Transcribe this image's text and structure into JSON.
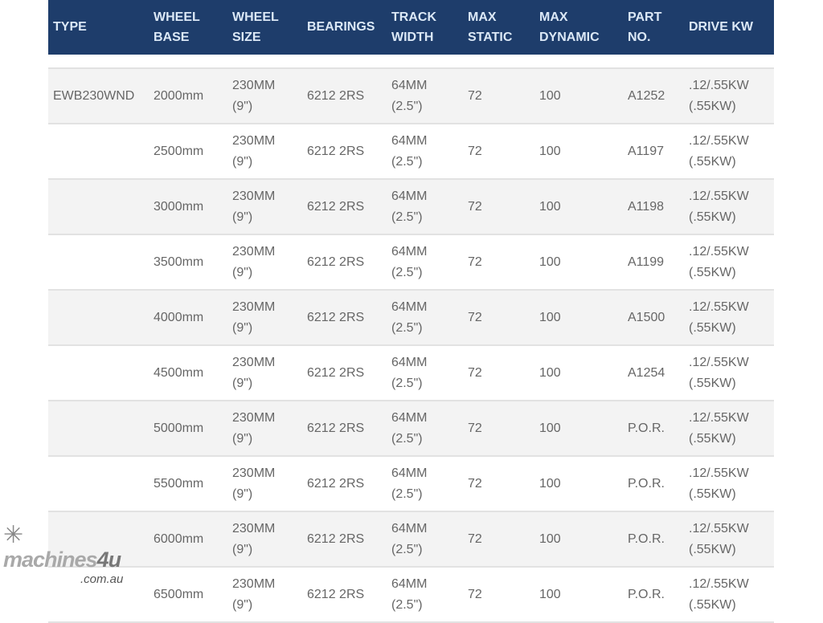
{
  "headers": [
    [
      "TYPE"
    ],
    [
      "WHEEL",
      "BASE"
    ],
    [
      "WHEEL",
      "SIZE"
    ],
    [
      "BEARINGS"
    ],
    [
      "TRACK",
      "WIDTH"
    ],
    [
      "MAX",
      "STATIC"
    ],
    [
      "MAX",
      "DYNAMIC"
    ],
    [
      "PART",
      "NO."
    ],
    [
      "DRIVE  KW"
    ]
  ],
  "rows": [
    {
      "type": "EWB230WND",
      "base": "2000mm",
      "size": [
        "230MM",
        "(9\")"
      ],
      "bearings": "6212 2RS",
      "track": [
        "64MM",
        "(2.5\")"
      ],
      "static": "72",
      "dynamic": "100",
      "part": "A1252",
      "drive": [
        ".12/.55KW",
        "(.55KW)"
      ]
    },
    {
      "type": "",
      "base": "2500mm",
      "size": [
        "230MM",
        "(9\")"
      ],
      "bearings": "6212 2RS",
      "track": [
        "64MM",
        "(2.5\")"
      ],
      "static": "72",
      "dynamic": "100",
      "part": "A1197",
      "drive": [
        ".12/.55KW",
        "(.55KW)"
      ]
    },
    {
      "type": "",
      "base": "3000mm",
      "size": [
        "230MM",
        "(9\")"
      ],
      "bearings": "6212 2RS",
      "track": [
        "64MM",
        "(2.5\")"
      ],
      "static": "72",
      "dynamic": "100",
      "part": "A1198",
      "drive": [
        ".12/.55KW",
        "(.55KW)"
      ]
    },
    {
      "type": "",
      "base": "3500mm",
      "size": [
        "230MM",
        "(9\")"
      ],
      "bearings": "6212 2RS",
      "track": [
        "64MM",
        "(2.5\")"
      ],
      "static": "72",
      "dynamic": "100",
      "part": "A1199",
      "drive": [
        ".12/.55KW",
        "(.55KW)"
      ]
    },
    {
      "type": "",
      "base": "4000mm",
      "size": [
        "230MM",
        "(9\")"
      ],
      "bearings": "6212 2RS",
      "track": [
        "64MM",
        "(2.5\")"
      ],
      "static": "72",
      "dynamic": "100",
      "part": "A1500",
      "drive": [
        ".12/.55KW",
        "(.55KW)"
      ]
    },
    {
      "type": "",
      "base": "4500mm",
      "size": [
        "230MM",
        "(9\")"
      ],
      "bearings": "6212 2RS",
      "track": [
        "64MM",
        "(2.5\")"
      ],
      "static": "72",
      "dynamic": "100",
      "part": "A1254",
      "drive": [
        ".12/.55KW",
        "(.55KW)"
      ]
    },
    {
      "type": "",
      "base": "5000mm",
      "size": [
        "230MM",
        "(9\")"
      ],
      "bearings": "6212 2RS",
      "track": [
        "64MM",
        "(2.5\")"
      ],
      "static": "72",
      "dynamic": "100",
      "part": "P.O.R.",
      "drive": [
        ".12/.55KW",
        "(.55KW)"
      ]
    },
    {
      "type": "",
      "base": "5500mm",
      "size": [
        "230MM",
        "(9\")"
      ],
      "bearings": "6212 2RS",
      "track": [
        "64MM",
        "(2.5\")"
      ],
      "static": "72",
      "dynamic": "100",
      "part": "P.O.R.",
      "drive": [
        ".12/.55KW",
        "(.55KW)"
      ]
    },
    {
      "type": "",
      "base": "6000mm",
      "size": [
        "230MM",
        "(9\")"
      ],
      "bearings": "6212 2RS",
      "track": [
        "64MM",
        "(2.5\")"
      ],
      "static": "72",
      "dynamic": "100",
      "part": "P.O.R.",
      "drive": [
        ".12/.55KW",
        "(.55KW)"
      ]
    },
    {
      "type": "",
      "base": "6500mm",
      "size": [
        "230MM",
        "(9\")"
      ],
      "bearings": "6212 2RS",
      "track": [
        "64MM",
        "(2.5\")"
      ],
      "static": "72",
      "dynamic": "100",
      "part": "P.O.R.",
      "drive": [
        ".12/.55KW",
        "(.55KW)"
      ]
    }
  ],
  "watermark": {
    "brand": "machines",
    "brand_num": "4u",
    "domain": ".com.au"
  },
  "colors": {
    "header_bg": "#1e3d6b",
    "header_text": "#dbe8f6",
    "row_alt": "#f3f3f3"
  }
}
